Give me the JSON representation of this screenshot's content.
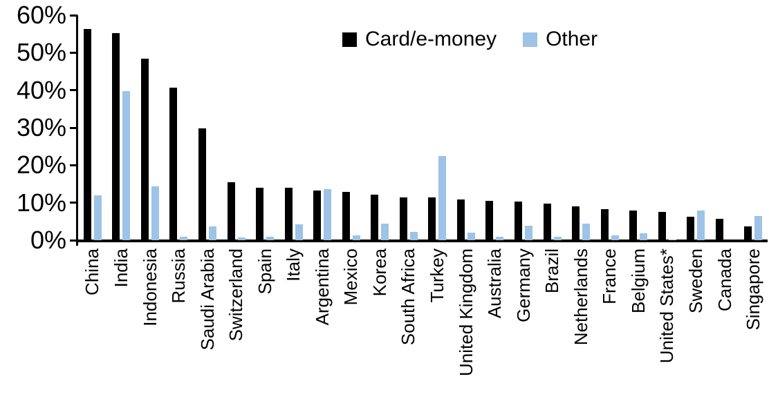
{
  "chart_data": {
    "type": "bar",
    "title": "",
    "xlabel": "",
    "ylabel": "",
    "ylim": [
      0,
      60
    ],
    "ytick_values": [
      60,
      50,
      40,
      30,
      20,
      10,
      0
    ],
    "ytick_labels": [
      "60%",
      "50%",
      "40%",
      "30%",
      "20%",
      "10%",
      "0%"
    ],
    "grid": false,
    "legend_position": "top-center",
    "categories": [
      "China",
      "India",
      "Indonesia",
      "Russia",
      "Saudi Arabia",
      "Switzerland",
      "Spain",
      "Italy",
      "Argentina",
      "Mexico",
      "Korea",
      "South Africa",
      "Turkey",
      "United Kingdom",
      "Australia",
      "Germany",
      "Brazil",
      "Netherlands",
      "France",
      "Belgium",
      "United States*",
      "Sweden",
      "Canada",
      "Singapore"
    ],
    "series": [
      {
        "name": "Card/e-money",
        "color": "#000000",
        "values": [
          56.4,
          55.2,
          48.4,
          40.6,
          29.8,
          15.5,
          14.0,
          13.9,
          13.2,
          12.8,
          12.1,
          11.5,
          11.4,
          10.8,
          10.5,
          10.3,
          9.8,
          9.0,
          8.3,
          7.9,
          7.6,
          6.3,
          5.8,
          3.6
        ]
      },
      {
        "name": "Other",
        "color": "#9DC3E6",
        "values": [
          12.0,
          39.7,
          14.3,
          1.0,
          3.7,
          0.8,
          1.0,
          4.3,
          13.6,
          1.2,
          4.4,
          2.2,
          22.4,
          2.1,
          0.9,
          3.8,
          1.0,
          4.5,
          1.3,
          1.8,
          0.2,
          7.9,
          0,
          6.4
        ]
      }
    ]
  }
}
